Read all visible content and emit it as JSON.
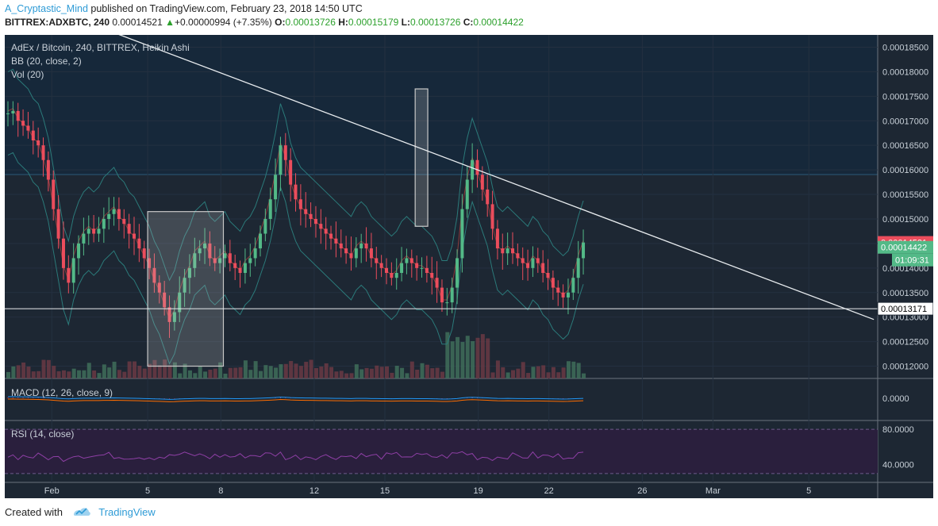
{
  "header": {
    "author": "A_Cryptastic_Mind",
    "published_text": "published on TradingView.com, February 23, 2018 14:50 UTC",
    "symbol": "BITTREX:ADXBTC, 240",
    "last": "0.00014521",
    "change": "+0.00000994 (+7.35%)",
    "o_label": "O:",
    "o": "0.00013726",
    "h_label": "H:",
    "h": "0.00015179",
    "l_label": "L:",
    "l": "0.00013726",
    "c_label": "C:",
    "c": "0.00014422"
  },
  "legend": {
    "title": "AdEx / Bitcoin, 240, BITTREX, Heikin Ashi",
    "bb": "BB (20, close, 2)",
    "vol": "Vol (20)",
    "macd": "MACD (12, 26, close, 9)",
    "rsi": "RSI (14, close)"
  },
  "price_badges": {
    "red": "0.00014521",
    "green": "0.00014422",
    "countdown": "01:09:31",
    "line": "0.00013171"
  },
  "footer": {
    "created_with": "Created with",
    "brand": "TradingView"
  },
  "colors": {
    "bg_dark": "#1d2733",
    "bg_upper": "#16283a",
    "up": "#53b987",
    "down": "#eb4d5c",
    "bb": "#2b7a7a",
    "macd_line": "#2196f3",
    "signal_line": "#ff6d00",
    "rsi": "#8e3fa5",
    "axis_text": "#c8d0d8"
  },
  "chart_data": [
    {
      "type": "line",
      "name": "price",
      "x_tick_labels": [
        "Feb",
        "5",
        "8",
        "12",
        "15",
        "19",
        "22",
        "26",
        "Mar",
        "5"
      ],
      "y_tick_labels": [
        "0.00018500",
        "0.00018000",
        "0.00017500",
        "0.00017000",
        "0.00016500",
        "0.00016000",
        "0.00015500",
        "0.00015000",
        "0.00014500",
        "0.00014000",
        "0.00013500",
        "0.00013000",
        "0.00012500",
        "0.00012000"
      ],
      "ylim": [
        0.0001175,
        0.0001875
      ],
      "x": [
        0,
        2,
        4,
        6,
        8,
        10,
        12,
        14,
        16,
        18,
        20,
        22,
        24,
        26,
        28,
        30,
        32,
        34,
        36,
        38,
        40,
        42,
        44,
        46,
        48,
        50,
        52,
        54,
        56,
        58,
        60,
        62,
        64,
        66,
        68,
        70,
        72,
        74,
        76,
        78,
        80,
        82,
        84,
        86,
        88,
        90,
        92,
        94,
        96,
        98,
        100,
        102,
        104,
        106,
        108,
        110,
        112,
        114,
        116,
        118,
        120,
        122,
        124,
        126,
        128,
        130,
        132,
        134,
        136,
        138,
        140,
        142,
        144,
        146,
        148,
        150,
        152,
        154,
        156,
        158,
        160,
        162,
        164,
        166,
        168,
        170,
        172,
        174,
        176,
        178,
        180,
        182,
        184,
        186,
        188,
        190,
        192,
        194,
        196,
        198,
        200,
        202,
        204,
        206,
        208,
        210,
        212,
        214,
        216,
        218,
        220,
        222,
        224,
        226,
        228
      ],
      "close": [
        0.0001715,
        0.000172,
        0.00017,
        0.000169,
        0.000168,
        0.000166,
        0.000165,
        0.000162,
        0.000158,
        0.000152,
        0.000146,
        0.00014,
        0.000137,
        0.000142,
        0.000145,
        0.000147,
        0.000148,
        0.000147,
        0.000148,
        0.00015,
        0.000151,
        0.000152,
        0.00015,
        0.000149,
        0.000147,
        0.000146,
        0.000144,
        0.000142,
        0.00014,
        0.000137,
        0.000135,
        0.000132,
        0.000129,
        0.000131,
        0.000135,
        0.000138,
        0.00014,
        0.000143,
        0.000144,
        0.000145,
        0.000142,
        0.000141,
        0.000142,
        0.000143,
        0.000141,
        0.00014,
        0.000139,
        0.000141,
        0.000142,
        0.000144,
        0.000147,
        0.00015,
        0.000154,
        0.000159,
        0.000165,
        0.000162,
        0.000157,
        0.000154,
        0.000152,
        0.000151,
        0.00015,
        0.000149,
        0.000148,
        0.000147,
        0.000146,
        0.000145,
        0.000144,
        0.000143,
        0.000142,
        0.000144,
        0.000145,
        0.000144,
        0.000142,
        0.000141,
        0.00014,
        0.000139,
        0.000138,
        0.000139,
        0.000141,
        0.000142,
        0.000141,
        0.00014,
        0.00014,
        0.000139,
        0.000138,
        0.000136,
        0.000133,
        0.000133,
        0.000136,
        0.000142,
        0.000152,
        0.000158,
        0.000162,
        0.000159,
        0.000156,
        0.000153,
        0.000148,
        0.000144,
        0.000143,
        0.000144,
        0.000143,
        0.000142,
        0.000141,
        0.00014,
        0.000142,
        0.000141,
        0.000139,
        0.000138,
        0.000136,
        0.000135,
        0.000134,
        0.000135,
        0.000138,
        0.000142,
        0.0001452
      ],
      "trendline": {
        "from": [
          0,
          0.000188
        ],
        "to": [
          262,
          0.00013
        ]
      },
      "horizontal_line": 0.0001317,
      "annotation_boxes": [
        {
          "x": [
            56,
            86
          ],
          "y": [
            0.00012,
            0.0001515
          ]
        },
        {
          "x": [
            162,
            167
          ],
          "y": [
            0.0001485,
            0.0001765
          ]
        }
      ]
    },
    {
      "type": "line",
      "name": "MACD",
      "y_tick_labels": [
        "0.0000"
      ],
      "ylim": [
        -1,
        1
      ]
    },
    {
      "type": "line",
      "name": "RSI",
      "y_tick_labels": [
        "80.0000",
        "40.0000"
      ],
      "ylim": [
        20,
        90
      ]
    }
  ]
}
